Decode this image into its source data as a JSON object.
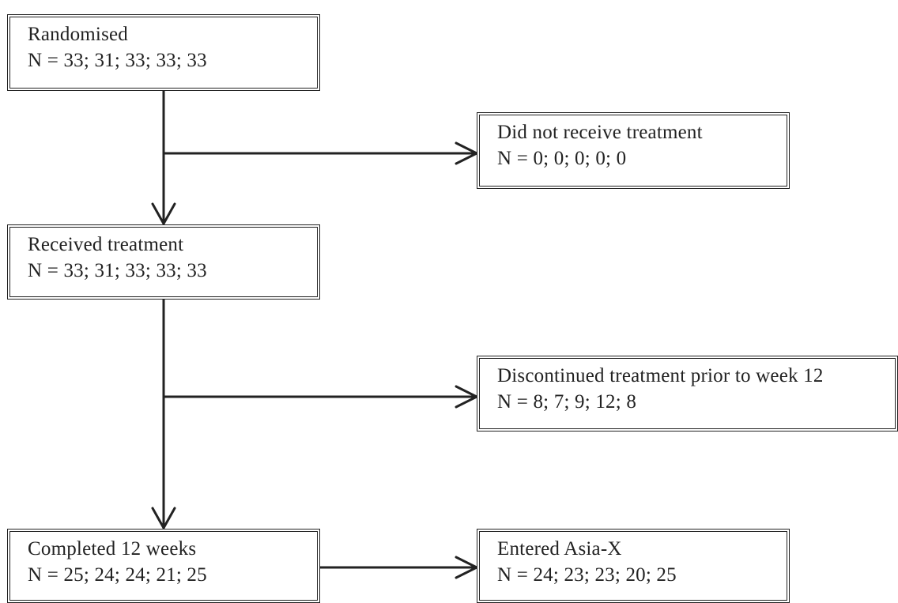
{
  "boxes": {
    "randomised": {
      "title": "Randomised",
      "n": "N = 33; 31; 33; 33; 33"
    },
    "no_treatment": {
      "title": "Did not receive treatment",
      "n": "N = 0; 0; 0; 0; 0"
    },
    "received": {
      "title": "Received treatment",
      "n": "N = 33; 31; 33; 33; 33"
    },
    "discontinued": {
      "title": "Discontinued treatment prior to week 12",
      "n": "N = 8; 7; 9; 12; 8"
    },
    "completed": {
      "title": "Completed 12 weeks",
      "n": "N = 25; 24; 24; 21; 25"
    },
    "asia_x": {
      "title": "Entered Asia-X",
      "n": "N = 24; 23; 23; 20; 25"
    }
  }
}
